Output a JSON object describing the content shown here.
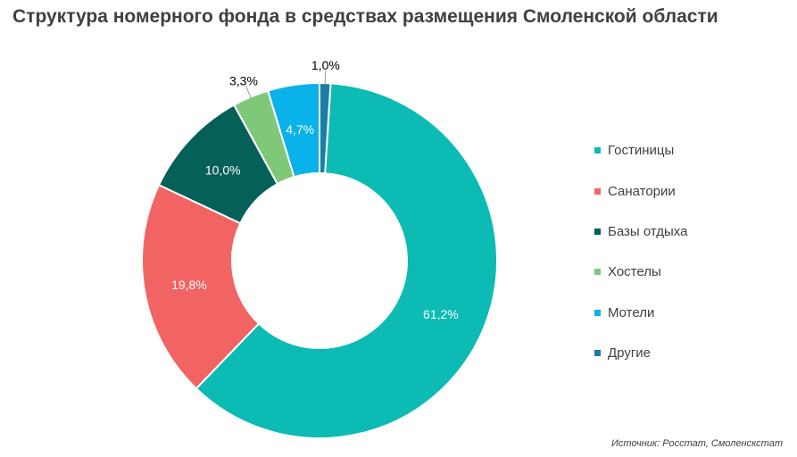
{
  "chart_data": {
    "type": "pie",
    "title": "Структура номерного фонда в средствах размещения Смоленской области",
    "categories": [
      "Гостиницы",
      "Санатории",
      "Базы отдыха",
      "Хостелы",
      "Мотели",
      "Другие"
    ],
    "values": [
      61.2,
      19.8,
      10.0,
      3.3,
      4.7,
      1.0
    ],
    "labels": [
      "61,2%",
      "19,8%",
      "10,0%",
      "3,3%",
      "4,7%",
      "1,0%"
    ],
    "colors": [
      "#0bbbb4",
      "#f26464",
      "#06605a",
      "#7fc87a",
      "#0ab2ea",
      "#1d7ea3"
    ],
    "label_colors": [
      "#ffffff",
      "#ffffff",
      "#ffffff",
      "#000000",
      "#ffffff",
      "#000000"
    ],
    "slice_order": [
      0,
      1,
      2,
      3,
      4,
      5
    ],
    "donut": true,
    "legend_position": "right",
    "source": "Источник: Росстат, Смоленскстат"
  }
}
